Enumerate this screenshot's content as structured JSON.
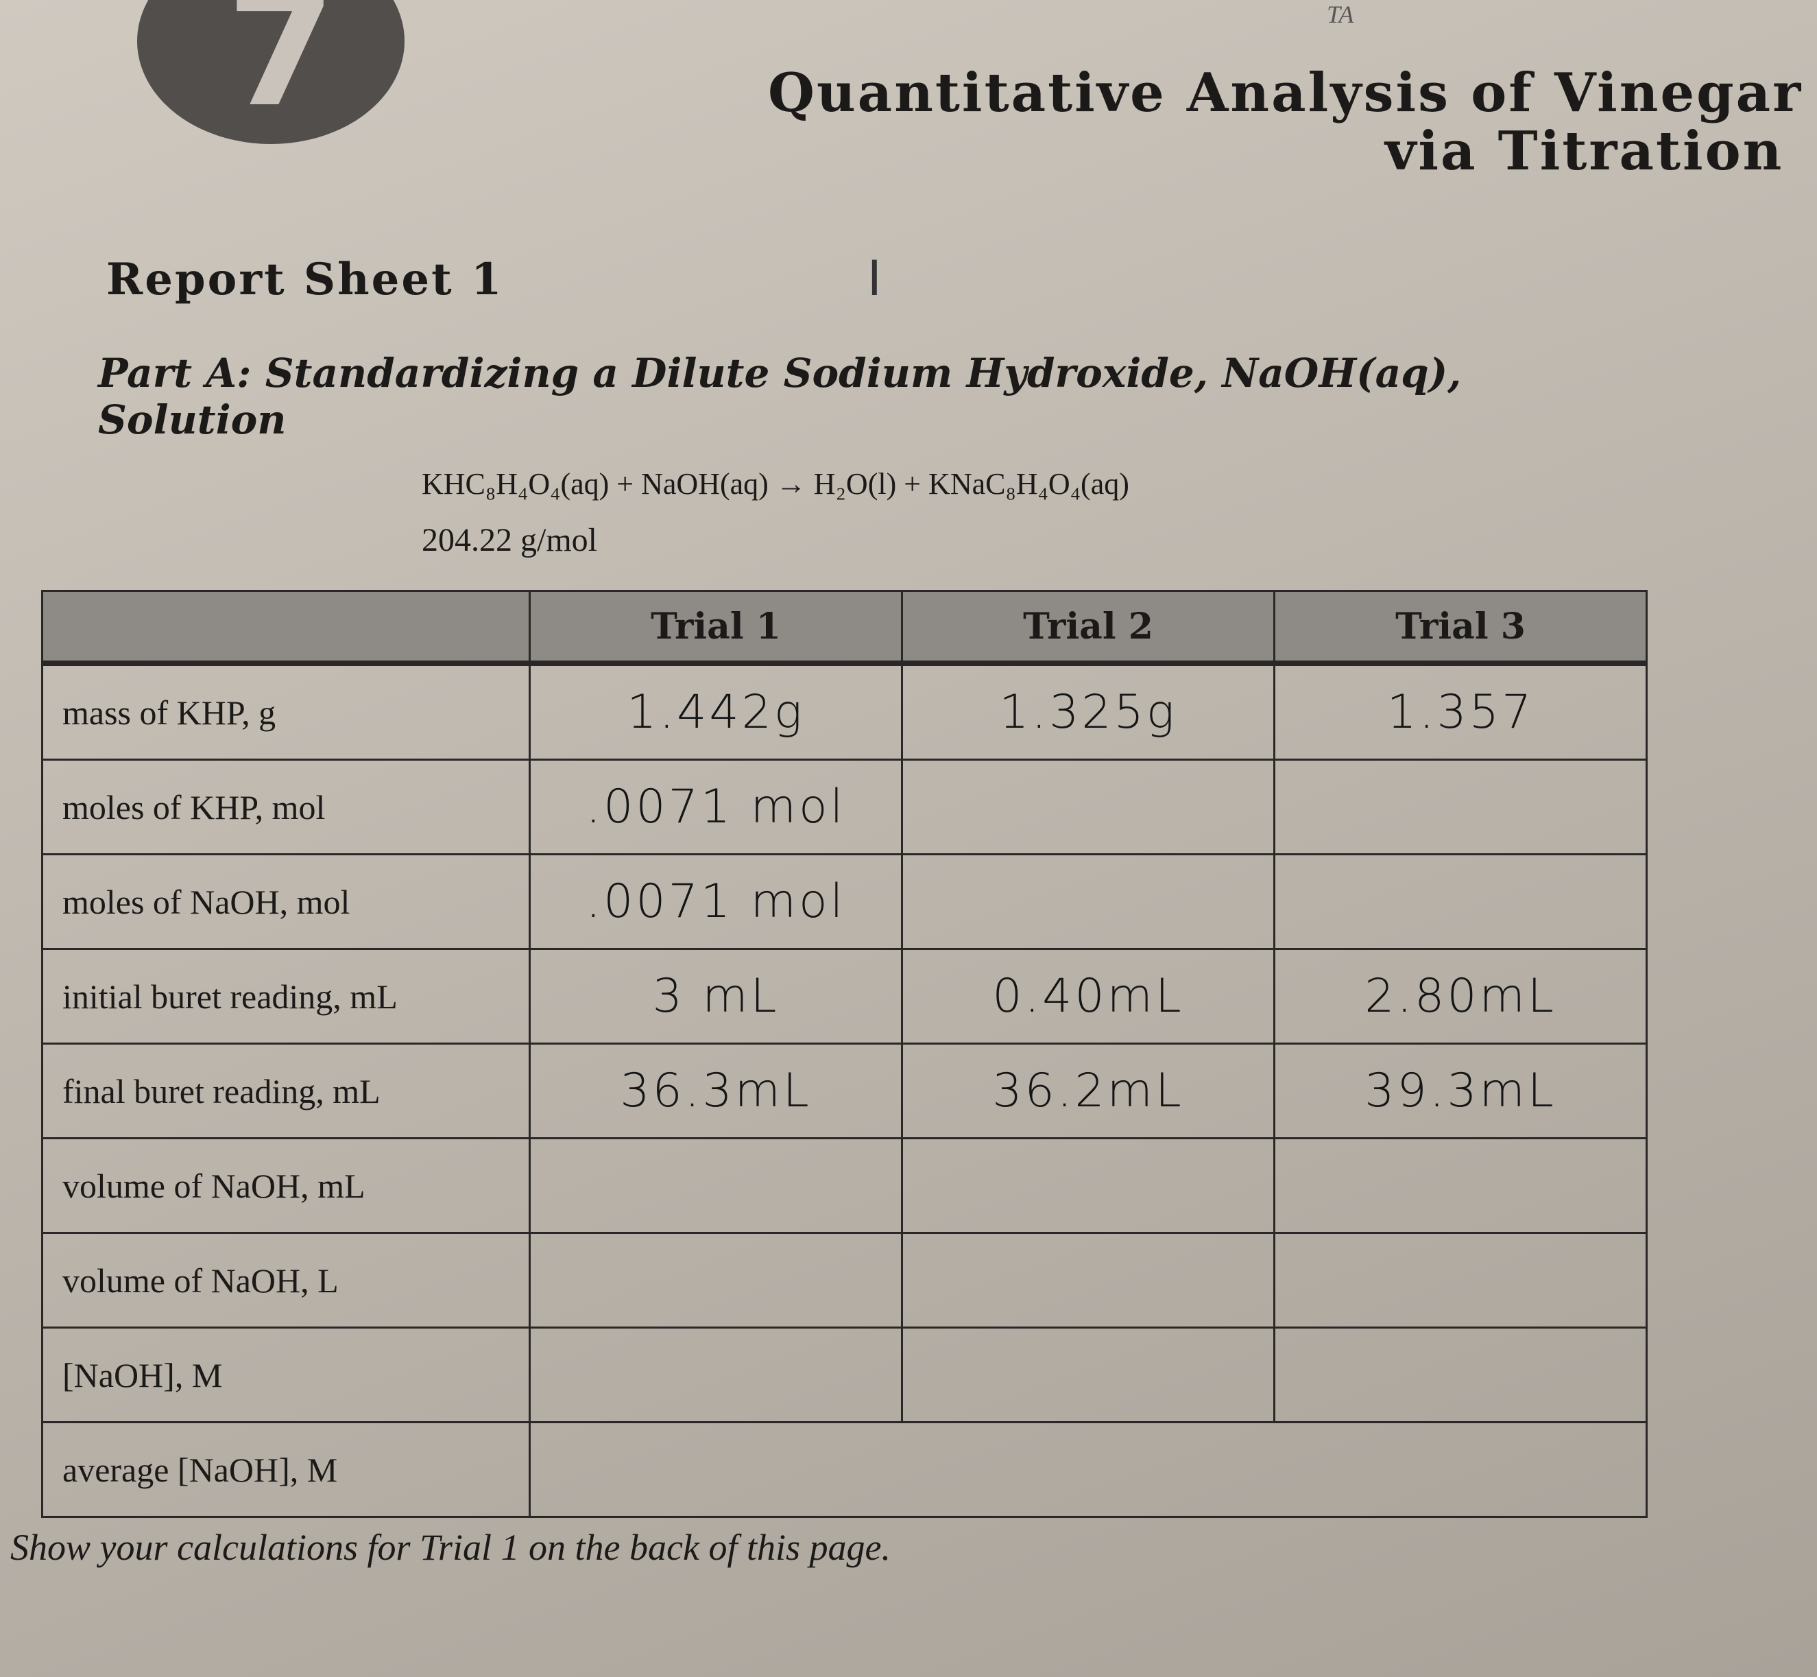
{
  "header": {
    "chapter_number": "7",
    "ta_label": "TA",
    "title_line1": "Quantitative Analysis of Vinegar",
    "title_line2": "via Titration"
  },
  "report_sheet": "Report Sheet 1",
  "handwritten_mark": "I",
  "part_a": {
    "heading_line1": "Part A: Standardizing a Dilute Sodium Hydroxide, NaOH(aq),",
    "heading_line2": "Solution",
    "equation": "KHC₈H₄O₄(aq) + NaOH(aq) → H₂O(l) + KNaC₈H₄O₄(aq)",
    "molar_mass": "204.22 g/mol"
  },
  "table": {
    "columns": [
      "Trial 1",
      "Trial 2",
      "Trial 3"
    ],
    "rows": [
      {
        "label": "mass of KHP, g",
        "cells": [
          "1.442g",
          "1.325g",
          "1.357"
        ]
      },
      {
        "label": "moles of KHP, mol",
        "cells": [
          ".0071 mol",
          null,
          null
        ]
      },
      {
        "label": "moles of NaOH, mol",
        "cells": [
          ".0071 mol",
          null,
          null
        ]
      },
      {
        "label": "initial buret reading, mL",
        "cells": [
          "3 mL",
          "0.40mL",
          "2.80mL"
        ]
      },
      {
        "label": "final buret reading, mL",
        "cells": [
          "36.3mL",
          "36.2mL",
          "39.3mL"
        ]
      },
      {
        "label": "volume of NaOH, mL",
        "cells": [
          null,
          null,
          null
        ]
      },
      {
        "label": "volume of NaOH, L",
        "cells": [
          null,
          null,
          null
        ]
      },
      {
        "label": "[NaOH], M",
        "cells": [
          null,
          null,
          null
        ]
      }
    ],
    "average_label": "average [NaOH], M"
  },
  "footer": "Show your calculations for Trial 1 on the back of this page."
}
